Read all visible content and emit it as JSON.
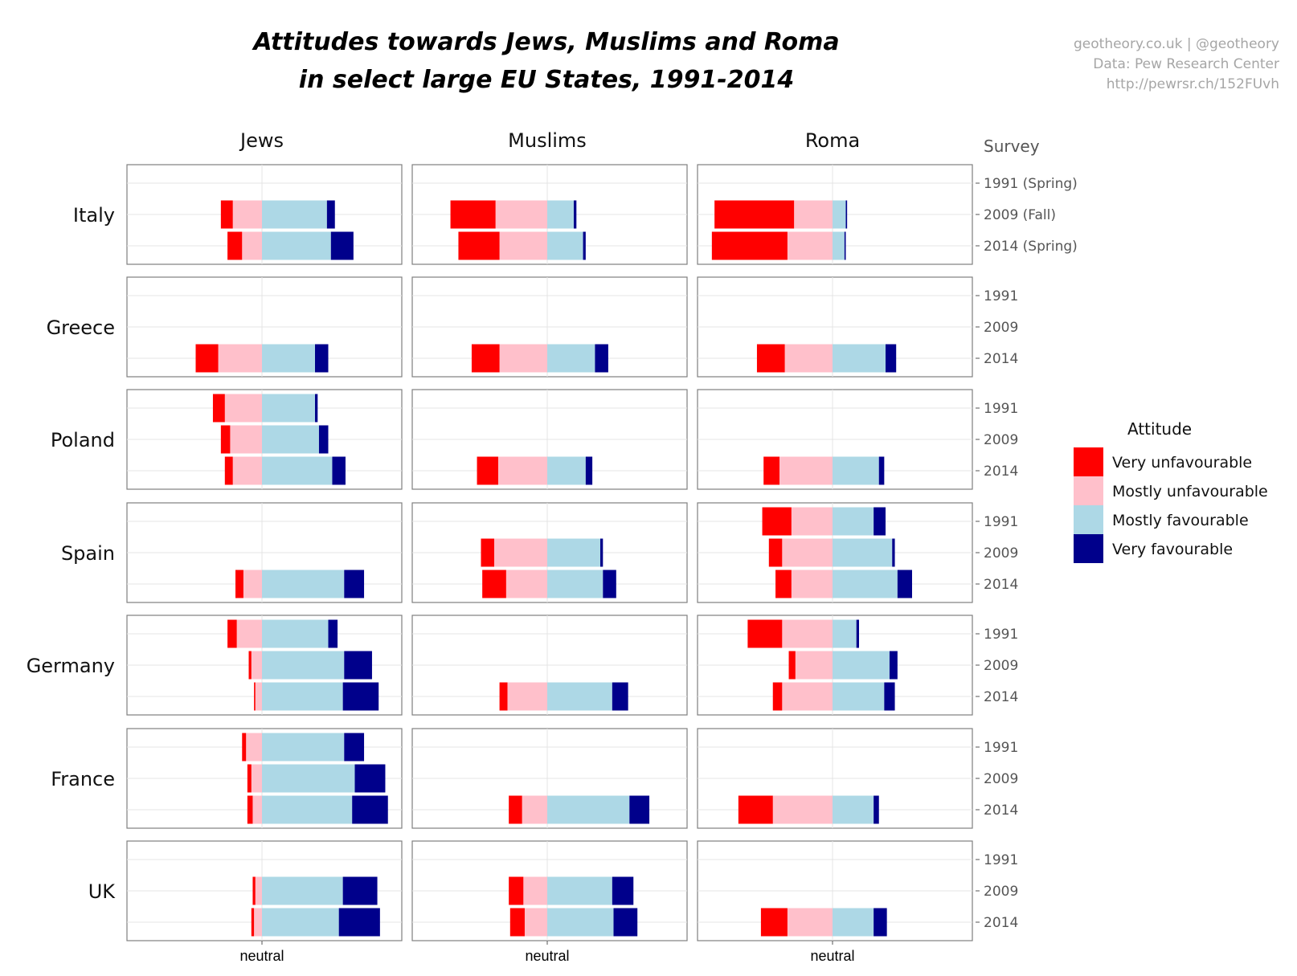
{
  "title_line1": "Attitudes towards Jews, Muslims and Roma",
  "title_line2": "in select large EU States, 1991-2014",
  "credits": [
    "geotheory.co.uk | @geotheory",
    "Data: Pew Research Center",
    "http://pewrsr.ch/152FUvh"
  ],
  "survey_label": "Survey",
  "x_tick_label": "neutral",
  "colors": {
    "very_unfavourable": "#ff0000",
    "mostly_unfavourable": "#ffc0cb",
    "mostly_favourable": "#add8e6",
    "very_favourable": "#00008b"
  },
  "chart_data": {
    "type": "bar",
    "subtype": "diverging stacked horizontal bar, faceted",
    "columns": [
      "Jews",
      "Muslims",
      "Roma"
    ],
    "rows": [
      "Italy",
      "Greece",
      "Poland",
      "Spain",
      "Germany",
      "France",
      "UK"
    ],
    "year_labels": {
      "Italy": [
        "1991 (Spring)",
        "2009 (Fall)",
        "2014 (Spring)"
      ],
      "default": [
        "1991",
        "2009",
        "2014"
      ]
    },
    "series": [
      {
        "key": "vu",
        "name": "Very unfavourable"
      },
      {
        "key": "mu",
        "name": "Mostly unfavourable"
      },
      {
        "key": "mf",
        "name": "Mostly favourable"
      },
      {
        "key": "vf",
        "name": "Very favourable"
      }
    ],
    "legend": {
      "title": "Attitude",
      "position": "right"
    },
    "xlim": [
      -100,
      100
    ],
    "grid": true,
    "unit": "percent of respondents",
    "data": {
      "Italy": {
        "Jews": [
          null,
          {
            "vu": 9,
            "mu": 22,
            "mf": 49,
            "vf": 6
          },
          {
            "vu": 11,
            "mu": 15,
            "mf": 52,
            "vf": 17
          }
        ],
        "Muslims": [
          null,
          {
            "vu": 34,
            "mu": 39,
            "mf": 20,
            "vf": 2
          },
          {
            "vu": 31,
            "mu": 36,
            "mf": 27,
            "vf": 2
          }
        ],
        "Roma": [
          null,
          {
            "vu": 60,
            "mu": 29,
            "mf": 10,
            "vf": 1
          },
          {
            "vu": 57,
            "mu": 34,
            "mf": 9,
            "vf": 1
          }
        ]
      },
      "Greece": {
        "Jews": [
          null,
          null,
          {
            "vu": 17,
            "mu": 33,
            "mf": 40,
            "vf": 10
          }
        ],
        "Muslims": [
          null,
          null,
          {
            "vu": 21,
            "mu": 36,
            "mf": 36,
            "vf": 10
          }
        ],
        "Roma": [
          null,
          null,
          {
            "vu": 21,
            "mu": 36,
            "mf": 40,
            "vf": 8
          }
        ]
      },
      "Poland": {
        "Jews": [
          {
            "vu": 9,
            "mu": 28,
            "mf": 40,
            "vf": 2
          },
          {
            "vu": 7,
            "mu": 24,
            "mf": 43,
            "vf": 7
          },
          {
            "vu": 6,
            "mu": 22,
            "mf": 53,
            "vf": 10
          }
        ],
        "Muslims": [
          null,
          null,
          {
            "vu": 16,
            "mu": 37,
            "mf": 29,
            "vf": 5
          }
        ],
        "Roma": [
          null,
          null,
          {
            "vu": 12,
            "mu": 40,
            "mf": 35,
            "vf": 4
          }
        ]
      },
      "Spain": {
        "Jews": [
          null,
          null,
          {
            "vu": 6,
            "mu": 14,
            "mf": 62,
            "vf": 15
          }
        ],
        "Muslims": [
          null,
          {
            "vu": 10,
            "mu": 40,
            "mf": 40,
            "vf": 2
          },
          {
            "vu": 18,
            "mu": 31,
            "mf": 42,
            "vf": 10
          }
        ],
        "Roma": [
          {
            "vu": 22,
            "mu": 31,
            "mf": 31,
            "vf": 9
          },
          {
            "vu": 10,
            "mu": 38,
            "mf": 45,
            "vf": 2
          },
          {
            "vu": 12,
            "mu": 31,
            "mf": 49,
            "vf": 11
          }
        ]
      },
      "Germany": {
        "Jews": [
          {
            "vu": 7,
            "mu": 19,
            "mf": 50,
            "vf": 7
          },
          {
            "vu": 2,
            "mu": 8,
            "mf": 62,
            "vf": 21
          },
          {
            "vu": 1,
            "mu": 5,
            "mf": 61,
            "vf": 27
          }
        ],
        "Muslims": [
          null,
          null,
          {
            "vu": 6,
            "mu": 30,
            "mf": 49,
            "vf": 12
          }
        ],
        "Roma": [
          {
            "vu": 26,
            "mu": 38,
            "mf": 18,
            "vf": 2
          },
          {
            "vu": 5,
            "mu": 28,
            "mf": 43,
            "vf": 6
          },
          {
            "vu": 7,
            "mu": 38,
            "mf": 39,
            "vf": 8
          }
        ]
      },
      "France": {
        "Jews": [
          {
            "vu": 3,
            "mu": 12,
            "mf": 62,
            "vf": 15
          },
          {
            "vu": 3,
            "mu": 8,
            "mf": 70,
            "vf": 23
          },
          {
            "vu": 4,
            "mu": 7,
            "mf": 68,
            "vf": 27
          }
        ],
        "Muslims": [
          null,
          null,
          {
            "vu": 10,
            "mu": 19,
            "mf": 62,
            "vf": 15
          }
        ],
        "Roma": [
          null,
          null,
          {
            "vu": 26,
            "mu": 45,
            "mf": 31,
            "vf": 4
          }
        ]
      },
      "UK": {
        "Jews": [
          null,
          {
            "vu": 2,
            "mu": 5,
            "mf": 61,
            "vf": 26
          },
          {
            "vu": 2,
            "mu": 6,
            "mf": 58,
            "vf": 31
          }
        ],
        "Muslims": [
          null,
          {
            "vu": 11,
            "mu": 18,
            "mf": 49,
            "vf": 16
          },
          {
            "vu": 11,
            "mu": 17,
            "mf": 50,
            "vf": 18
          }
        ],
        "Roma": [
          null,
          null,
          {
            "vu": 20,
            "mu": 34,
            "mf": 31,
            "vf": 10
          }
        ]
      }
    }
  }
}
